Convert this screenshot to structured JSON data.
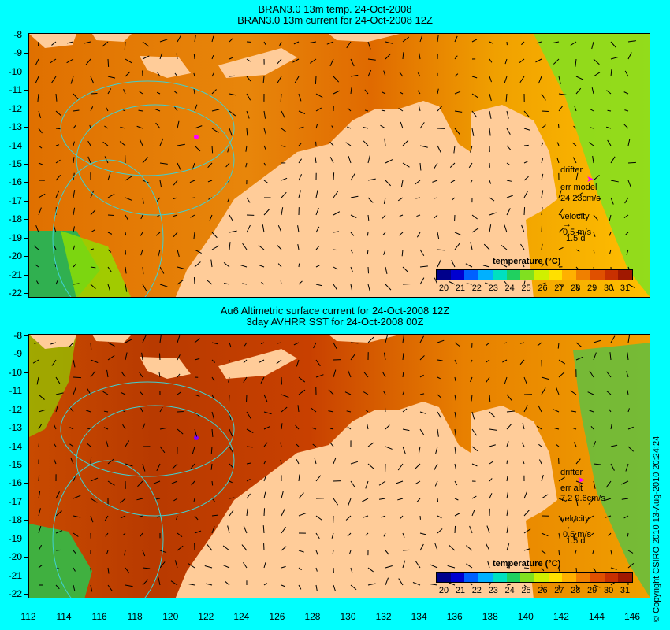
{
  "panels": [
    {
      "title_line1": "BRAN3.0 13m temp. 24-Oct-2008",
      "title_line2": "BRAN3.0 13m current for 24-Oct-2008 12Z",
      "drifter_label": "drifter",
      "err_label": "err model",
      "err_value": "24 23cm/s",
      "velocity_label": "velocity",
      "velocity_scale": "0.5 m/s",
      "velocity_days": "1.5 d"
    },
    {
      "title_line1": "Au6 Altimetric surface current for 24-Oct-2008 12Z",
      "title_line2": "3day AVHRR SST for 24-Oct-2008 00Z",
      "drifter_label": "drifter",
      "err_label": "err alt",
      "err_value": "7.2 9.6cm/s",
      "velocity_label": "velocity",
      "velocity_scale": "0.5 m/s",
      "velocity_days": "1.5 d"
    }
  ],
  "colorbar": {
    "title": "temperature (°C)",
    "ticks": [
      "20",
      "21",
      "22",
      "23",
      "24",
      "25",
      "26",
      "27",
      "28",
      "29",
      "30",
      "31"
    ],
    "colors": [
      "#00008b",
      "#0000d0",
      "#0060ff",
      "#00b0ff",
      "#00e0c0",
      "#20d060",
      "#80e020",
      "#d0f000",
      "#ffe000",
      "#ffb000",
      "#f08000",
      "#e05000",
      "#c83000",
      "#a01800"
    ]
  },
  "y_ticks": [
    "-8",
    "-9",
    "-10",
    "-11",
    "-12",
    "-13",
    "-14",
    "-15",
    "-16",
    "-17",
    "-18",
    "-19",
    "-20",
    "-21",
    "-22"
  ],
  "x_ticks": [
    "112",
    "114",
    "116",
    "118",
    "120",
    "122",
    "124",
    "126",
    "128",
    "130",
    "132",
    "134",
    "136",
    "138",
    "140",
    "142",
    "144",
    "146"
  ],
  "copyright": "© Copyright CSIRO 2010  13-Aug-2010 20:24:24",
  "colors": {
    "background": "#00ffff",
    "land": "#ffcc99",
    "drifter": "#ff00ff"
  }
}
